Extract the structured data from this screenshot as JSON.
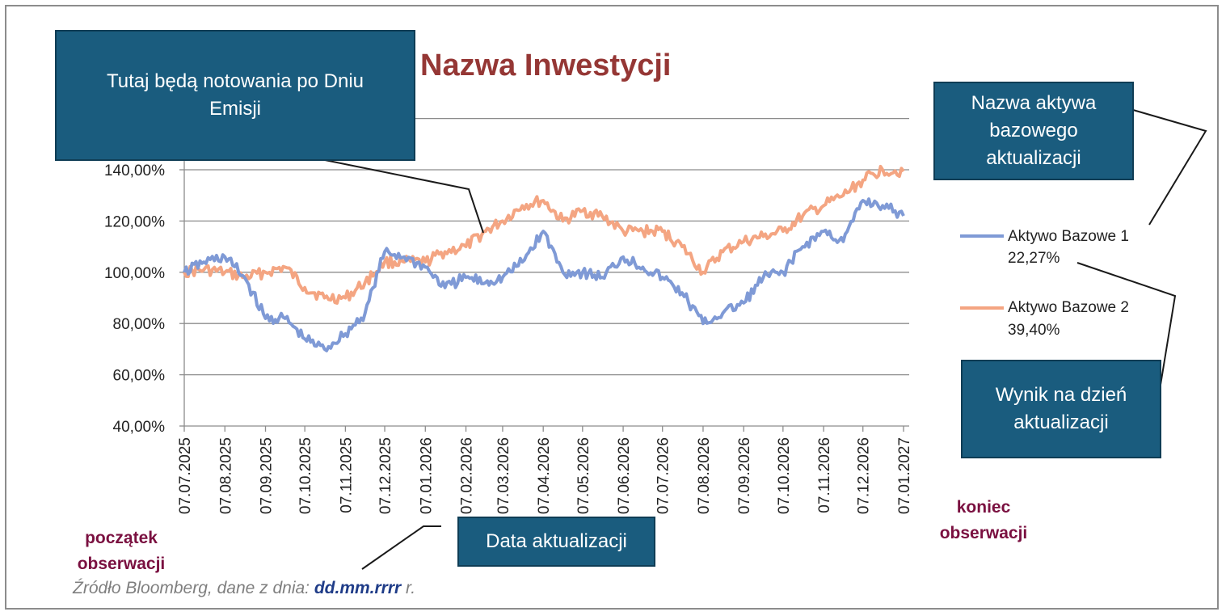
{
  "chart_data": {
    "type": "line",
    "title": "Nazwa Inwestycji",
    "ylim": [
      40,
      140
    ],
    "yticks": [
      40,
      60,
      80,
      100,
      120,
      140
    ],
    "ytick_labels": [
      "40,00%",
      "60,00%",
      "80,00%",
      "100,00%",
      "120,00%",
      "140,00%"
    ],
    "grid": true,
    "x_dates": [
      "07.07.2025",
      "07.08.2025",
      "07.09.2025",
      "07.10.2025",
      "07.11.2025",
      "07.12.2025",
      "07.01.2026",
      "07.02.2026",
      "07.03.2026",
      "07.04.2026",
      "07.05.2026",
      "07.06.2026",
      "07.07.2026",
      "07.08.2026",
      "07.09.2026",
      "07.10.2026",
      "07.11.2026",
      "07.12.2026",
      "07.01.2027"
    ],
    "series": [
      {
        "name": "Aktywo Bazowe 1",
        "color": "#7f9ad6",
        "result": "22,27%",
        "x": [
          "07.07.2025",
          "22.07.2025",
          "07.08.2025",
          "22.08.2025",
          "07.09.2025",
          "22.09.2025",
          "07.10.2025",
          "22.10.2025",
          "07.11.2025",
          "22.11.2025",
          "07.12.2025",
          "22.12.2025",
          "07.01.2026",
          "22.01.2026",
          "07.02.2026",
          "22.02.2026",
          "07.03.2026",
          "22.03.2026",
          "07.04.2026",
          "22.04.2026",
          "07.05.2026",
          "22.05.2026",
          "07.06.2026",
          "22.06.2026",
          "07.07.2026",
          "22.07.2026",
          "07.08.2026",
          "22.08.2026",
          "07.09.2026",
          "22.09.2026",
          "07.10.2026",
          "22.10.2026",
          "07.11.2026",
          "22.11.2026",
          "07.12.2026",
          "22.12.2026",
          "07.01.2027"
        ],
        "values": [
          100,
          104,
          106,
          98,
          82,
          82,
          74,
          70,
          76,
          84,
          108,
          106,
          102,
          94,
          98,
          96,
          98,
          104,
          116,
          100,
          100,
          98,
          106,
          102,
          98,
          92,
          80,
          84,
          88,
          98,
          100,
          110,
          116,
          112,
          128,
          126,
          122
        ]
      },
      {
        "name": "Aktywo Bazowe 2",
        "color": "#f4a582",
        "result": "39,40%",
        "x": [
          "07.07.2025",
          "22.07.2025",
          "07.08.2025",
          "22.08.2025",
          "07.09.2025",
          "22.09.2025",
          "07.10.2025",
          "22.10.2025",
          "07.11.2025",
          "22.11.2025",
          "07.12.2025",
          "22.12.2025",
          "07.01.2026",
          "22.01.2026",
          "07.02.2026",
          "22.02.2026",
          "07.03.2026",
          "22.03.2026",
          "07.04.2026",
          "22.04.2026",
          "07.05.2026",
          "22.05.2026",
          "07.06.2026",
          "22.06.2026",
          "07.07.2026",
          "22.07.2026",
          "07.08.2026",
          "22.08.2026",
          "07.09.2026",
          "22.09.2026",
          "07.10.2026",
          "22.10.2026",
          "07.11.2026",
          "22.11.2026",
          "07.12.2026",
          "22.12.2026",
          "07.01.2027"
        ],
        "values": [
          100,
          101,
          100,
          98,
          100,
          102,
          94,
          90,
          90,
          96,
          104,
          104,
          104,
          108,
          110,
          116,
          120,
          126,
          128,
          120,
          124,
          122,
          116,
          116,
          116,
          110,
          100,
          108,
          112,
          114,
          116,
          122,
          126,
          130,
          136,
          140,
          139.4
        ]
      }
    ]
  },
  "callouts": {
    "quotes_note": "Tutaj będą notowania po Dniu Emisji",
    "asset_name_note": "Nazwa aktywa bazowego aktualizacji",
    "result_note": "Wynik na dzień aktualizacji",
    "update_date_note": "Data aktualizacji"
  },
  "labels": {
    "start": "początek obserwacji",
    "end": "koniec obserwacji",
    "source_prefix": "Źródło Bloomberg, dane z dnia: ",
    "source_date": "dd.mm.rrrr",
    "source_suffix": " r."
  },
  "colors": {
    "callout_bg": "#1a5c7e",
    "title": "#953735",
    "end_labels": "#7a1040"
  }
}
